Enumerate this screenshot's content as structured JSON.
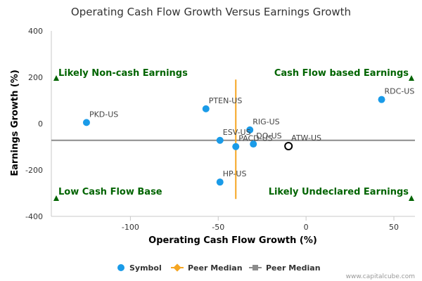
{
  "chart_data": {
    "type": "scatter",
    "title": "Operating Cash Flow Growth Versus Earnings Growth",
    "xlabel": "Operating Cash Flow Growth (%)",
    "ylabel": "Earnings Growth (%)",
    "xlim": [
      -145,
      62
    ],
    "ylim": [
      -400,
      400
    ],
    "x_ticks": [
      -100,
      -50,
      0,
      50
    ],
    "y_ticks": [
      -400,
      -200,
      0,
      200,
      400
    ],
    "x_tick_labels": [
      "-100",
      "-50",
      "0",
      "50"
    ],
    "y_tick_labels": [
      "-400",
      "-200",
      "0",
      "200",
      "400"
    ],
    "points": [
      {
        "label": "PKD-US",
        "x": -125,
        "y": 5
      },
      {
        "label": "PTEN-US",
        "x": -57,
        "y": 64
      },
      {
        "label": "RIG-US",
        "x": -32,
        "y": -27
      },
      {
        "label": "ESV-US",
        "x": -49,
        "y": -72
      },
      {
        "label": "PACD-US",
        "x": -40,
        "y": -99
      },
      {
        "label": "DO-US",
        "x": -30,
        "y": -88
      },
      {
        "label": "HP-US",
        "x": -49,
        "y": -252
      },
      {
        "label": "RDC-US",
        "x": 43,
        "y": 104
      }
    ],
    "highlight_point": {
      "label": "ATW-US",
      "x": -10,
      "y": -97
    },
    "peer_median_x": -40,
    "peer_median_y": -72,
    "peer_median_x_range": [
      -325,
      190
    ],
    "quadrants": {
      "top_left": "Likely Non-cash Earnings",
      "top_right": "Cash Flow based Earnings",
      "bottom_left": "Low Cash Flow Base",
      "bottom_right": "Likely Undeclared Earnings"
    },
    "legend": [
      {
        "label": "Symbol",
        "color": "#1a9be8"
      },
      {
        "label": "Peer Median",
        "color": "#f5a623"
      },
      {
        "label": "Peer Median",
        "color": "#8c8c8c"
      }
    ],
    "legend_position": "bottom-center",
    "grid": false,
    "credit": "www.capitalcube.com",
    "colors": {
      "point": "#1a9be8",
      "highlight_stroke": "#000000",
      "median_vertical": "#f5a623",
      "median_horizontal": "#8c8c8c",
      "quadrant_text": "#006400",
      "marker": "#006400"
    }
  }
}
